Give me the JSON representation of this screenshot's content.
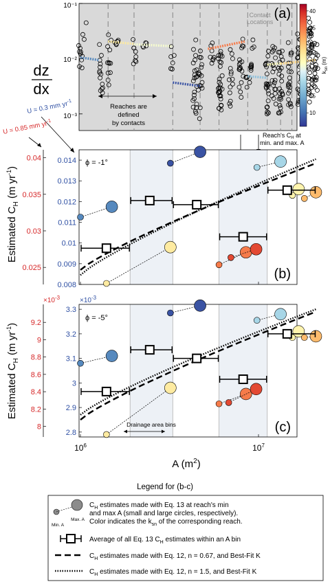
{
  "chart_data": [
    {
      "panel": "(a)",
      "type": "scatter",
      "ylabel_num": "dz",
      "ylabel_den": "dx",
      "yscale": "log",
      "ylim": [
        0.0005,
        0.1
      ],
      "y_ticks": [
        "10⁻¹",
        "10⁻²",
        "10⁻³"
      ],
      "annotations": {
        "contact_label": "Contact Locations",
        "reaches_label": "Reaches are defined by contacts",
        "reach_ch_label": "Reach's C",
        "reach_ch_sub": "H",
        "reach_ch_label2": " at min. and max. A"
      },
      "colorbar": {
        "label": "k",
        "label_sub": "sn",
        "label_unit": " (m)",
        "ticks": [
          10,
          15,
          20,
          25,
          30,
          35,
          40
        ],
        "range": [
          6,
          42
        ],
        "colormap": "RdYlBu_r"
      },
      "contact_positions_A": [
        1430000,
        2000000,
        3300000,
        4700000,
        6000000,
        8700000,
        11200000,
        13300000,
        15400000
      ],
      "fit_segments": [
        {
          "x": [
            1000000,
            1280000
          ],
          "y": [
            0.0105,
            0.0094
          ],
          "ksn": 12
        },
        {
          "x": [
            1430000,
            2000000
          ],
          "y": [
            0.0205,
            0.0185
          ],
          "ksn": 27
        },
        {
          "x": [
            2000000,
            3300000
          ],
          "y": [
            0.0182,
            0.0168
          ],
          "ksn": 24
        },
        {
          "x": [
            3300000,
            4700000
          ],
          "y": [
            0.0037,
            0.0032
          ],
          "ksn": 8
        },
        {
          "x": [
            5200000,
            8400000
          ],
          "y": [
            0.015,
            0.0205
          ],
          "ksn": 35
        },
        {
          "x": [
            8700000,
            11200000
          ],
          "y": [
            0.0048,
            0.0045
          ],
          "ksn": 17
        },
        {
          "x": [
            11200000,
            13300000
          ],
          "y": [
            0.0078,
            0.0082
          ],
          "ksn": 25
        },
        {
          "x": [
            13300000,
            21000000
          ],
          "y": [
            0.0081,
            0.0095
          ],
          "ksn": 29
        }
      ]
    },
    {
      "panel": "(b)",
      "type": "scatter",
      "phi_label": "ϕ = -1°",
      "ylabel": "Estimated C",
      "ylabel_sub": "H",
      "ylabel_unit": " (m yr",
      "ylabel_unit_sup": "-1",
      "ylabel_unit_end": ")",
      "left_axis_label": "U = 0.85 mm yr",
      "left_axis_label_sup": "-1",
      "right_axis_label": "U = 0.3 mm yr",
      "right_axis_label_sup": "-1",
      "ylim_blue": [
        0.008,
        0.0145
      ],
      "blue_ticks": [
        0.008,
        0.009,
        0.01,
        0.011,
        0.012,
        0.013,
        0.014
      ],
      "blue_tick_labels": [
        "0.008",
        "0.009",
        "0.01",
        "0.011",
        "0.012",
        "0.013",
        "0.014"
      ],
      "red_ticks": [
        0.025,
        0.03,
        0.035,
        0.04
      ],
      "red_tick_labels": [
        "0.025",
        "0.03",
        "0.035",
        "0.04"
      ],
      "red_to_blue_factor": 0.3529,
      "pairs": [
        {
          "x": [
            1000000,
            1500000
          ],
          "y": [
            0.01125,
            0.01175
          ],
          "ksn": 12
        },
        {
          "x": [
            1400000,
            3200000
          ],
          "y": [
            0.00805,
            0.0098
          ],
          "ksn": 27
        },
        {
          "x": [
            3200000,
            4700000
          ],
          "y": [
            0.01385,
            0.0144
          ],
          "ksn": 8
        },
        {
          "x": [
            6000000,
            8500000
          ],
          "y": [
            0.00895,
            0.00955
          ],
          "ksn": 35
        },
        {
          "x": [
            7000000,
            9700000
          ],
          "y": [
            0.0093,
            0.0097
          ],
          "ksn": 38
        },
        {
          "x": [
            9800000,
            13300000
          ],
          "y": [
            0.01365,
            0.01393
          ],
          "ksn": 19
        },
        {
          "x": [
            15500000,
            16800000
          ],
          "y": [
            0.0123,
            0.0126
          ],
          "ksn": 26
        },
        {
          "x": [
            18100000,
            21000000
          ],
          "y": [
            0.01215,
            0.01245
          ],
          "ksn": 31
        }
      ],
      "bins": [
        {
          "x": 1400000,
          "xerr": [
            1000000,
            1900000
          ],
          "y": 0.00975
        },
        {
          "x": 2450000,
          "xerr": [
            1900000,
            3300000
          ],
          "y": 0.01205
        },
        {
          "x": 4500000,
          "xerr": [
            3300000,
            6000000
          ],
          "y": 0.01185
        },
        {
          "x": 8200000,
          "xerr": [
            6000000,
            11200000
          ],
          "y": 0.0103
        },
        {
          "x": 14500000,
          "xerr": [
            11200000,
            21000000
          ],
          "y": 0.01255
        }
      ],
      "curve_n067": {
        "x": [
          1000000,
          21000000
        ],
        "y": [
          0.0087,
          0.01385
        ]
      },
      "curve_n15": {
        "x": [
          1000000,
          21000000
        ],
        "y": [
          0.00845,
          0.01405
        ]
      }
    },
    {
      "panel": "(c)",
      "type": "scatter",
      "phi_label": "ϕ = -5°",
      "ylabel": "Estimated C",
      "ylabel_sub": "H",
      "ylabel_unit": " (m yr",
      "ylabel_unit_sup": "-1",
      "ylabel_unit_end": ")",
      "xlabel": "A (m",
      "xlabel_sup": "2",
      "xlabel_end": ")",
      "x_ticks": [
        1000000,
        10000000
      ],
      "x_tick_labels": [
        "10",
        "10"
      ],
      "x_tick_sups": [
        "6",
        "7"
      ],
      "left_multiplier": "×10",
      "left_multiplier_sup": "-3",
      "right_multiplier": "×10",
      "right_multiplier_sup": "-3",
      "ylim_blue": [
        2.78,
        3.32
      ],
      "blue_ticks": [
        2.8,
        2.9,
        3.0,
        3.1,
        3.2,
        3.3
      ],
      "blue_tick_labels": [
        "2.8",
        "2.9",
        "3",
        "3.1",
        "3.2",
        "3.3"
      ],
      "red_ticks": [
        8.0,
        8.2,
        8.4,
        8.6,
        8.8,
        9.0,
        9.2
      ],
      "red_tick_labels": [
        "8",
        "8.2",
        "8.4",
        "8.6",
        "8.8",
        "9",
        "9.2"
      ],
      "red_to_blue_factor": 0.3529,
      "drainage_label": "Drainage area bins",
      "pairs": [
        {
          "x": [
            1000000,
            1500000
          ],
          "y": [
            3.08,
            3.11
          ],
          "ksn": 12
        },
        {
          "x": [
            1400000,
            3200000
          ],
          "y": [
            2.79,
            2.98
          ],
          "ksn": 27
        },
        {
          "x": [
            3200000,
            4700000
          ],
          "y": [
            3.285,
            3.315
          ],
          "ksn": 8
        },
        {
          "x": [
            6000000,
            8500000
          ],
          "y": [
            2.915,
            2.955
          ],
          "ksn": 35
        },
        {
          "x": [
            6800000,
            9700000
          ],
          "y": [
            2.92,
            2.975
          ],
          "ksn": 38
        },
        {
          "x": [
            9800000,
            13300000
          ],
          "y": [
            3.255,
            3.28
          ],
          "ksn": 19
        },
        {
          "x": [
            15500000,
            16800000
          ],
          "y": [
            3.185,
            3.21
          ],
          "ksn": 26
        },
        {
          "x": [
            18100000,
            21000000
          ],
          "y": [
            3.185,
            3.19
          ],
          "ksn": 31
        }
      ],
      "bins": [
        {
          "x": 1400000,
          "xerr": [
            1000000,
            1900000
          ],
          "y": 2.965
        },
        {
          "x": 2450000,
          "xerr": [
            1900000,
            3300000
          ],
          "y": 3.135
        },
        {
          "x": 4500000,
          "xerr": [
            3300000,
            6000000
          ],
          "y": 3.1
        },
        {
          "x": 8200000,
          "xerr": [
            6000000,
            11200000
          ],
          "y": 3.015
        },
        {
          "x": 14500000,
          "xerr": [
            11200000,
            21000000
          ],
          "y": 3.2
        }
      ],
      "curve_n067": {
        "x": [
          1000000,
          21000000
        ],
        "y": [
          2.85,
          3.29
        ]
      },
      "curve_n15": {
        "x": [
          1000000,
          21000000
        ],
        "y": [
          2.87,
          3.3
        ]
      }
    }
  ],
  "legend": {
    "title": "Legend for (b-c)",
    "entries": [
      {
        "pre": "C",
        "sub": "H",
        "post": " estimates made with Eq. 13 at reach's min",
        "line2": "and max A (small and large circles, respectively).",
        "line3": "Color indicates the k",
        "line3_sub": "sn",
        "line3_post": " of the corresponding reach."
      },
      {
        "pre": "Average of all Eq. 13 C",
        "sub": "H",
        "post": " estimates within an A bin"
      },
      {
        "pre": "C",
        "sub": "H",
        "post": " estimates made with Eq. 12, n = 0.67, and Best-Fit K"
      },
      {
        "pre": "C",
        "sub": "H",
        "post": " estimates made with Eq. 12, n = 1.5, and Best-Fit K"
      }
    ],
    "min_label": "Min. A",
    "max_label": "Max. A"
  }
}
